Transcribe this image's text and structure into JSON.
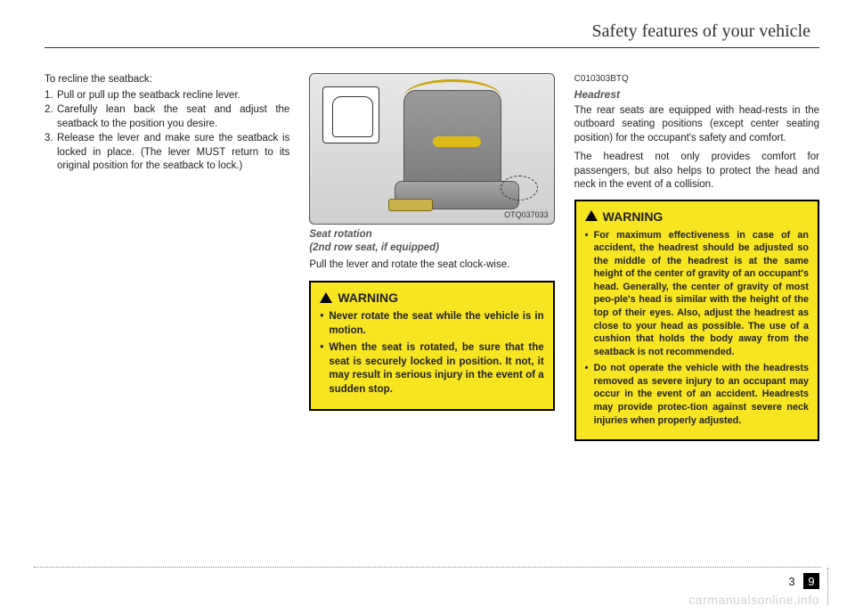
{
  "header": {
    "title": "Safety features of your vehicle"
  },
  "col1": {
    "intro": "To recline the seatback:",
    "items": [
      {
        "num": "1.",
        "text": "Pull or pull up the seatback recline lever."
      },
      {
        "num": "2.",
        "text": "Carefully lean back the seat and adjust the seatback to the position you desire."
      },
      {
        "num": "3.",
        "text": "Release the lever and make sure the seatback is locked in place. (The lever MUST return to its original position for the seatback to lock.)"
      }
    ]
  },
  "col2": {
    "figure_code": "OTQ037033",
    "caption_line1": "Seat rotation",
    "caption_line2": "(2nd row seat, if equipped)",
    "body": "Pull the lever and rotate the seat clock-wise.",
    "warning_title": "WARNING",
    "warning_items": [
      "Never rotate the seat while the vehicle is in motion.",
      "When the seat is rotated, be sure that the seat is securely locked in position. It not, it may result in serious injury in the event of a sudden stop."
    ]
  },
  "col3": {
    "code": "C010303BTQ",
    "subhead": "Headrest",
    "para1": "The rear seats are equipped with head-rests in the outboard seating positions (except center seating position) for the occupant's safety and comfort.",
    "para2": "The headrest not only provides comfort for passengers, but also helps to protect the head and neck in the event of a collision.",
    "warning_title": "WARNING",
    "warning_items": [
      "For maximum effectiveness in case of an accident, the headrest should be adjusted so the middle of the headrest is at the same height of the center of gravity of an occupant's head. Generally, the center of gravity of most peo-ple's head is similar with the height of the top of their eyes. Also, adjust the headrest as close to your head as possible. The use of a cushion that holds the body away from the seatback is not recommended.",
      "Do not operate the vehicle with the headrests removed as severe injury to an occupant may occur in the event of an accident. Headrests may provide protec-tion against severe neck injuries when properly adjusted."
    ]
  },
  "footer": {
    "section": "3",
    "page": "9"
  },
  "watermark": "carmanualsonline.info"
}
